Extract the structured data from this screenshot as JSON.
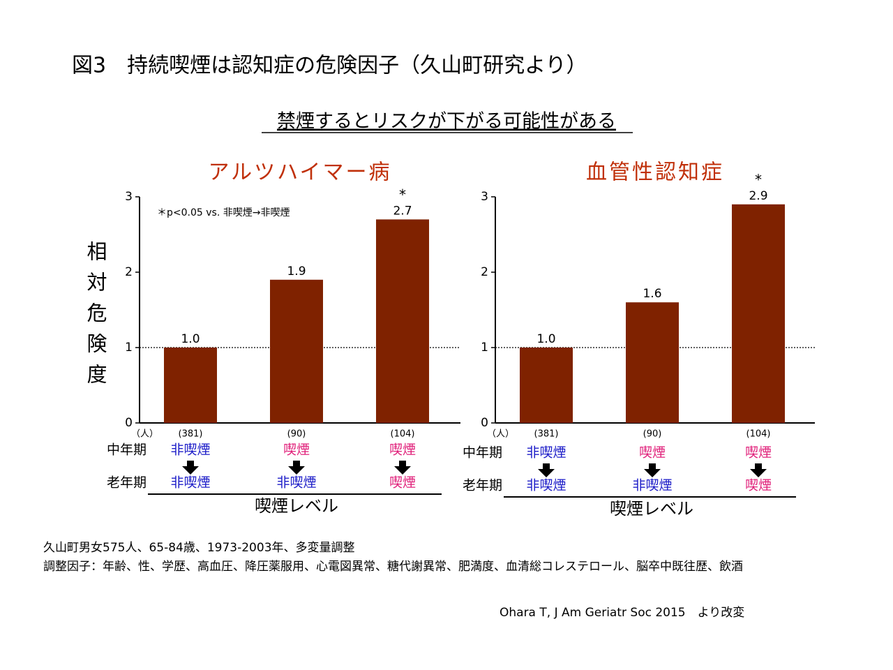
{
  "title": "図3　持続喫煙は認知症の危険因子（久山町研究より）",
  "subtitle": "禁煙するとリスクが下がる可能性がある",
  "footnotes": [
    "久山町男女575人、65-84歳、1973-2003年、多変量調整",
    "調整因子：年齢、性、学歴、高血圧、降圧薬服用、心電図異常、糖代謝異常、肥満度、血清総コレステロール、脳卒中既往歴、飲酒"
  ],
  "source": "Ohara T, J Am Geriatr Soc 2015　より改変",
  "chart_data": [
    {
      "type": "bar",
      "title": "アルツハイマー病",
      "ylabel": "相対危険度",
      "note": "＊p<0.05 vs. 非喫煙→非喫煙",
      "n_unit": "（人）",
      "categories": [
        "(381)",
        "(90)",
        "(104)"
      ],
      "row_labels": [
        "中年期",
        "老年期"
      ],
      "midlife": [
        {
          "text": "非喫煙",
          "color": "#1c1cc8"
        },
        {
          "text": "喫煙",
          "color": "#e0207a"
        },
        {
          "text": "喫煙",
          "color": "#e0207a"
        }
      ],
      "latelife": [
        {
          "text": "非喫煙",
          "color": "#1c1cc8"
        },
        {
          "text": "非喫煙",
          "color": "#1c1cc8"
        },
        {
          "text": "喫煙",
          "color": "#e0207a"
        }
      ],
      "xlabel": "喫煙レベル",
      "values": [
        1.0,
        1.9,
        2.7
      ],
      "value_labels": [
        "1.0",
        "1.9",
        "2.7"
      ],
      "annotations": [
        {
          "index": 2,
          "text": "*"
        }
      ],
      "color": "#7f2200",
      "ylim": [
        0,
        3
      ],
      "yticks": [
        0,
        1,
        2,
        3
      ],
      "reference_line": 1
    },
    {
      "type": "bar",
      "title": "血管性認知症",
      "n_unit": "（人）",
      "categories": [
        "(381)",
        "(90)",
        "(104)"
      ],
      "row_labels": [
        "中年期",
        "老年期"
      ],
      "midlife": [
        {
          "text": "非喫煙",
          "color": "#1c1cc8"
        },
        {
          "text": "喫煙",
          "color": "#e0207a"
        },
        {
          "text": "喫煙",
          "color": "#e0207a"
        }
      ],
      "latelife": [
        {
          "text": "非喫煙",
          "color": "#1c1cc8"
        },
        {
          "text": "非喫煙",
          "color": "#1c1cc8"
        },
        {
          "text": "喫煙",
          "color": "#e0207a"
        }
      ],
      "xlabel": "喫煙レベル",
      "values": [
        1.0,
        1.6,
        2.9
      ],
      "value_labels": [
        "1.0",
        "1.6",
        "2.9"
      ],
      "annotations": [
        {
          "index": 2,
          "text": "*"
        }
      ],
      "color": "#7f2200",
      "ylim": [
        0,
        3
      ],
      "yticks": [
        0,
        1,
        2,
        3
      ],
      "reference_line": 1
    }
  ]
}
